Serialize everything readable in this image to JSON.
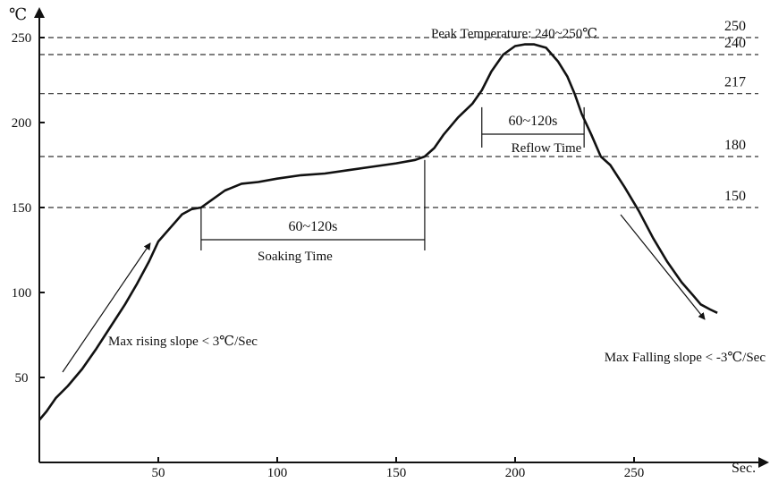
{
  "chart_data": {
    "type": "line",
    "title": "",
    "xlabel": "Sec.",
    "ylabel": "℃",
    "xlim": [
      0,
      300
    ],
    "ylim": [
      0,
      260
    ],
    "x_ticks": [
      50,
      100,
      150,
      200,
      250
    ],
    "y_ticks": [
      50,
      100,
      150,
      200,
      250
    ],
    "grid": false,
    "series": [
      {
        "x": [
          0,
          3,
          7,
          12,
          18,
          24,
          30,
          36,
          41,
          46,
          50,
          55,
          60,
          64,
          68,
          72,
          78,
          85,
          92,
          100,
          110,
          120,
          130,
          140,
          150,
          158,
          162,
          166,
          170,
          176,
          182,
          186,
          190,
          195,
          200,
          204,
          208,
          213,
          218,
          222,
          225,
          228,
          232,
          236,
          240,
          246,
          252,
          258,
          264,
          270,
          275,
          278,
          282,
          285
        ],
        "y": [
          25,
          30,
          38,
          45,
          55,
          67,
          80,
          93,
          105,
          118,
          130,
          138,
          146,
          149,
          150,
          154,
          160,
          164,
          165,
          167,
          169,
          170,
          172,
          174,
          176,
          178,
          180,
          185,
          193,
          203,
          211,
          219,
          230,
          240,
          245,
          246,
          246,
          244,
          236,
          227,
          217,
          205,
          193,
          180,
          175,
          162,
          148,
          132,
          118,
          106,
          98,
          93,
          90,
          88
        ]
      }
    ],
    "reference_lines": [
      {
        "value": 250,
        "label": "250"
      },
      {
        "value": 240,
        "label": "240"
      },
      {
        "value": 217,
        "label": "217"
      },
      {
        "value": 180,
        "label": "180"
      },
      {
        "value": 150,
        "label": "150"
      }
    ],
    "annotations": {
      "peak": "Peak Temperature: 240~250℃",
      "soak_duration": "60~120s",
      "soak_label": "Soaking Time",
      "soak_range": [
        68,
        162
      ],
      "soak_y": 150,
      "reflow_duration": "60~120s",
      "reflow_label": "Reflow Time",
      "reflow_range": [
        186,
        229
      ],
      "reflow_y": 217,
      "rising": "Max rising slope < 3℃/Sec",
      "falling": "Max Falling slope < -3℃/Sec"
    }
  }
}
